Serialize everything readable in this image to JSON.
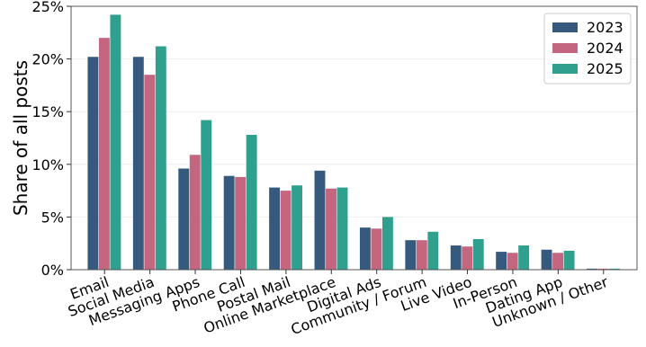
{
  "chart_data": {
    "type": "bar",
    "title": "",
    "xlabel": "",
    "ylabel": "Share of all posts",
    "ylim": [
      0,
      25
    ],
    "yticks": [
      0,
      5,
      10,
      15,
      20,
      25
    ],
    "ytick_labels": [
      "0%",
      "5%",
      "10%",
      "15%",
      "20%",
      "25%"
    ],
    "grid": "horizontal, light",
    "legend_position": "top-right",
    "categories": [
      "Email",
      "Social Media",
      "Messaging Apps",
      "Phone Call",
      "Postal Mail",
      "Online Marketplace",
      "Digital Ads",
      "Community / Forum",
      "Live Video",
      "In-Person",
      "Dating App",
      "Unknown / Other"
    ],
    "series": [
      {
        "name": "2023",
        "color": "#355a7e",
        "values": [
          20.2,
          20.2,
          9.6,
          8.9,
          7.8,
          9.4,
          4.0,
          2.8,
          2.3,
          1.7,
          1.9,
          0.1
        ]
      },
      {
        "name": "2024",
        "color": "#c4667f",
        "values": [
          22.0,
          18.5,
          10.9,
          8.8,
          7.5,
          7.7,
          3.9,
          2.8,
          2.2,
          1.6,
          1.6,
          0.1
        ]
      },
      {
        "name": "2025",
        "color": "#2ea08d",
        "values": [
          24.2,
          21.2,
          14.2,
          12.8,
          8.0,
          7.8,
          5.0,
          3.6,
          2.9,
          2.3,
          1.8,
          0.1
        ]
      }
    ]
  }
}
